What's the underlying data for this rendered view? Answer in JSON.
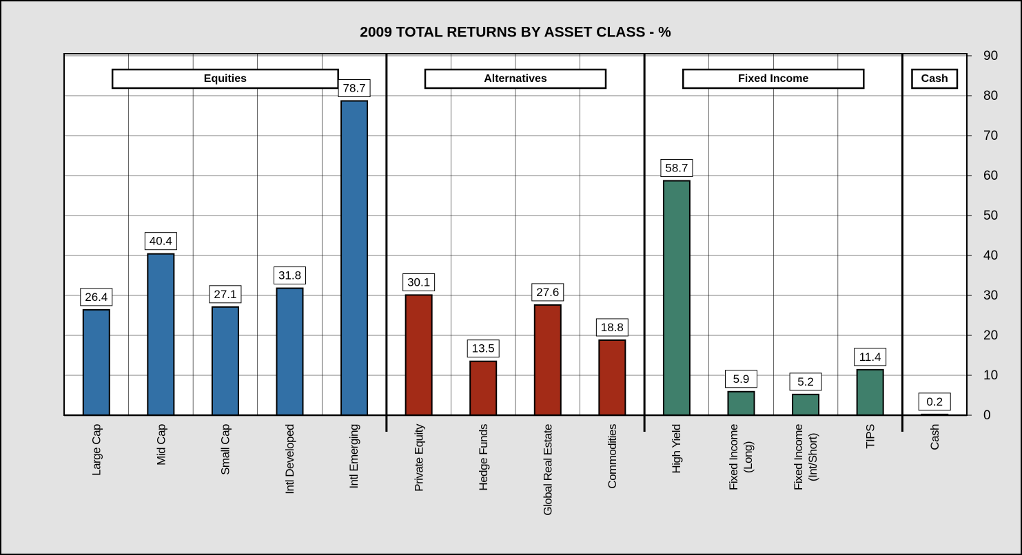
{
  "chart_data": {
    "type": "bar",
    "title": "2009 TOTAL RETURNS BY ASSET CLASS - %",
    "categories": [
      "Large Cap",
      "Mid Cap",
      "Small Cap",
      "Intl Developed",
      "Intl Emerging",
      "Private Equity",
      "Hedge Funds",
      "Global Real Estate",
      "Commodities",
      "High Yield",
      "Fixed Income\n(Long)",
      "Fixed Income\n(Int/Short)",
      "TIPS",
      "Cash"
    ],
    "series": [
      {
        "name": "Equities",
        "color": "#3270a6",
        "values": [
          26.4,
          40.4,
          27.1,
          31.8,
          78.7,
          null,
          null,
          null,
          null,
          null,
          null,
          null,
          null,
          null
        ]
      },
      {
        "name": "Alternatives",
        "color": "#a32b17",
        "values": [
          null,
          null,
          null,
          null,
          null,
          30.1,
          13.5,
          27.6,
          18.8,
          null,
          null,
          null,
          null,
          null
        ]
      },
      {
        "name": "Fixed Income",
        "color": "#3f7f6b",
        "values": [
          null,
          null,
          null,
          null,
          null,
          null,
          null,
          null,
          null,
          58.7,
          5.9,
          5.2,
          11.4,
          null
        ]
      },
      {
        "name": "Cash",
        "color": "#3270a6",
        "values": [
          null,
          null,
          null,
          null,
          null,
          null,
          null,
          null,
          null,
          null,
          null,
          null,
          null,
          0.2
        ]
      }
    ],
    "ylim": [
      0,
      90
    ],
    "yticks": [
      0,
      10,
      20,
      30,
      40,
      50,
      60,
      70,
      80,
      90
    ],
    "grid": true,
    "y_axis_side": "right"
  }
}
